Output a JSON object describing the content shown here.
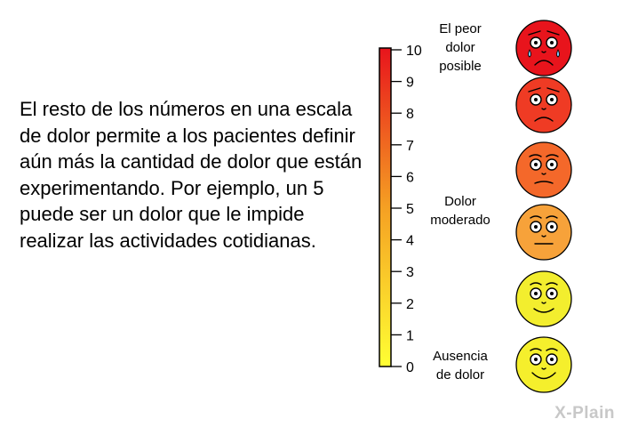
{
  "body_text": "El resto de los números en una escala de dolor permite a los pacientes definir aún más la cantidad de dolor que están experimentando. Por ejemplo, un 5 puede ser un dolor que le impide realizar las actividades cotidianas.",
  "scale": {
    "ticks": [
      "0",
      "1",
      "2",
      "3",
      "4",
      "5",
      "6",
      "7",
      "8",
      "9",
      "10"
    ],
    "gradient_colors": {
      "top": "#e8141c",
      "middle": "#f5a023",
      "bottom": "#ffff33"
    },
    "labels": {
      "worst": [
        "El peor",
        "dolor",
        "posible"
      ],
      "moderate": [
        "Dolor",
        "moderado"
      ],
      "none": [
        "Ausencia",
        "de dolor"
      ]
    }
  },
  "faces": [
    {
      "name": "worst-pain-face-icon",
      "color": "#e8141c",
      "expression": "crying"
    },
    {
      "name": "severe-pain-face-icon",
      "color": "#ef3b24",
      "expression": "very-sad"
    },
    {
      "name": "moderate-severe-face-icon",
      "color": "#f4682a",
      "expression": "frown"
    },
    {
      "name": "moderate-face-icon",
      "color": "#f7a23a",
      "expression": "neutral"
    },
    {
      "name": "mild-face-icon",
      "color": "#f3ee2e",
      "expression": "smile"
    },
    {
      "name": "no-pain-face-icon",
      "color": "#f5ef2c",
      "expression": "big-smile"
    }
  ],
  "watermark": "X-Plain"
}
